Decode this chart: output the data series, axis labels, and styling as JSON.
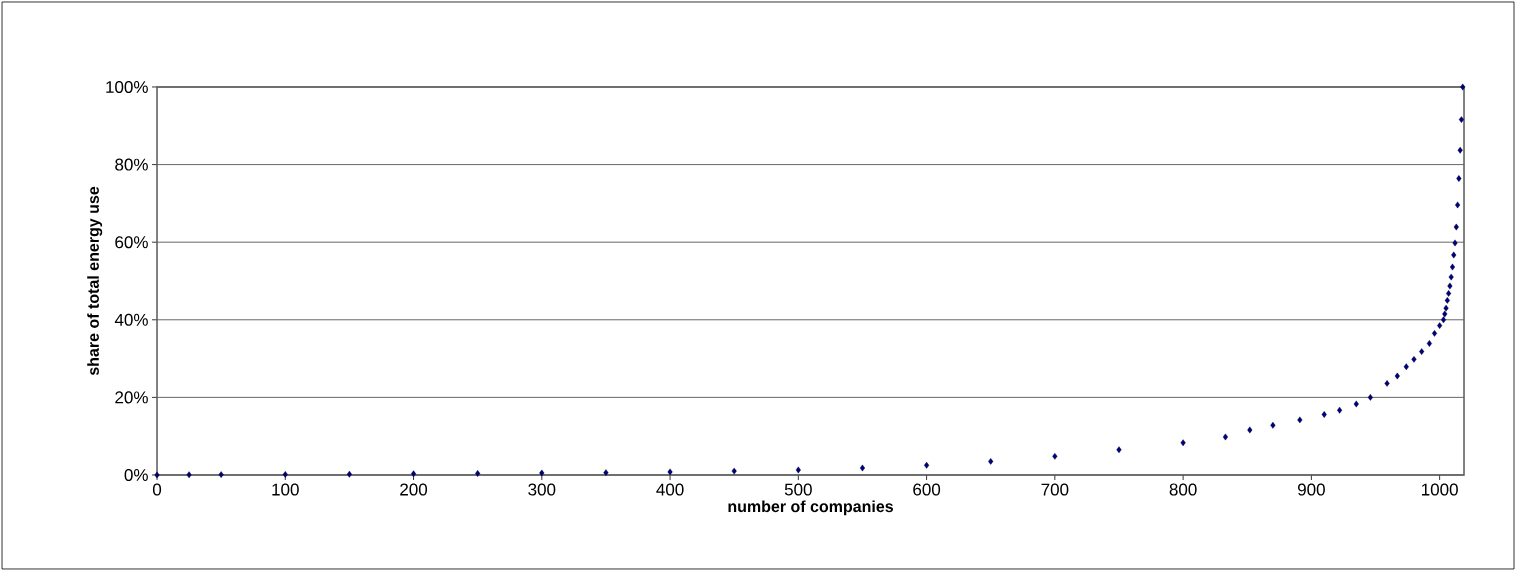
{
  "chart_data": {
    "type": "scatter",
    "xlabel": "number of companies",
    "ylabel": "share of total energy use",
    "marker": "diamond",
    "grid": "y",
    "xlim": [
      0,
      1019
    ],
    "ylim": [
      0,
      100
    ],
    "xticks": [
      0,
      100,
      200,
      300,
      400,
      500,
      600,
      700,
      800,
      900,
      1000
    ],
    "yticks": [
      {
        "value": 0,
        "label": "0%"
      },
      {
        "value": 20,
        "label": "20%"
      },
      {
        "value": 40,
        "label": "40%"
      },
      {
        "value": 60,
        "label": "60%"
      },
      {
        "value": 80,
        "label": "80%"
      },
      {
        "value": 100,
        "label": "100%"
      }
    ],
    "series": [
      {
        "color": "#000080",
        "x": [
          0,
          25,
          50,
          100,
          150,
          200,
          250,
          300,
          350,
          400,
          450,
          500,
          550,
          600,
          650,
          700,
          750,
          800,
          833,
          852,
          870,
          891,
          910,
          922,
          935,
          946,
          959,
          967,
          974,
          980,
          986,
          992,
          996,
          1000,
          1003,
          1004,
          1005,
          1006,
          1007,
          1008,
          1009,
          1010,
          1011,
          1012,
          1013,
          1014,
          1015,
          1016,
          1017,
          1018
        ],
        "values": [
          0,
          0.05,
          0.1,
          0.15,
          0.2,
          0.3,
          0.4,
          0.5,
          0.6,
          0.8,
          1.0,
          1.3,
          1.8,
          2.5,
          3.5,
          4.8,
          6.5,
          8.3,
          9.8,
          11.6,
          12.8,
          14.2,
          15.6,
          16.7,
          18.3,
          20,
          23.6,
          25.5,
          27.9,
          29.8,
          31.8,
          33.9,
          36.5,
          38.5,
          40,
          41.5,
          43,
          45,
          46.8,
          48.7,
          51.0,
          53.6,
          56.7,
          59.8,
          63.9,
          69.6,
          76.4,
          83.7,
          91.6,
          100
        ]
      }
    ]
  }
}
